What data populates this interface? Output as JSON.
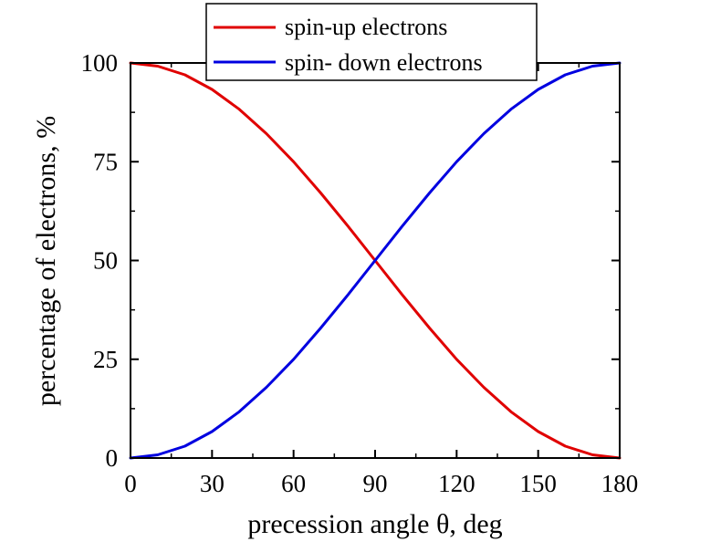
{
  "chart_data": {
    "type": "line",
    "xlabel": "precession angle θ, deg",
    "ylabel": "percentage of  electrons, %",
    "xlim": [
      0,
      180
    ],
    "ylim": [
      0,
      100
    ],
    "x_ticks": [
      0,
      30,
      60,
      90,
      120,
      150,
      180
    ],
    "x_tick_labels": [
      "0",
      "30",
      "60",
      "90",
      "120",
      "150",
      "180"
    ],
    "y_ticks": [
      0,
      25,
      50,
      75,
      100
    ],
    "y_tick_labels": [
      "0",
      "25",
      "50",
      "75",
      "100"
    ],
    "grid": false,
    "legend_position": "top-center",
    "x": [
      0,
      10,
      20,
      30,
      40,
      50,
      60,
      70,
      80,
      90,
      100,
      110,
      120,
      130,
      140,
      150,
      160,
      170,
      180
    ],
    "series": [
      {
        "name": "spin-up electrons",
        "color": "#e00000",
        "values": [
          100,
          99.2,
          97.0,
          93.3,
          88.3,
          82.1,
          75.0,
          67.1,
          58.7,
          50.0,
          41.3,
          32.9,
          25.0,
          17.9,
          11.7,
          6.7,
          3.0,
          0.8,
          0
        ]
      },
      {
        "name": "spin- down electrons",
        "color": "#0000e0",
        "values": [
          0,
          0.8,
          3.0,
          6.7,
          11.7,
          17.9,
          25.0,
          32.9,
          41.3,
          50.0,
          58.7,
          67.1,
          75.0,
          82.1,
          88.3,
          93.3,
          97.0,
          99.2,
          100
        ]
      }
    ]
  }
}
